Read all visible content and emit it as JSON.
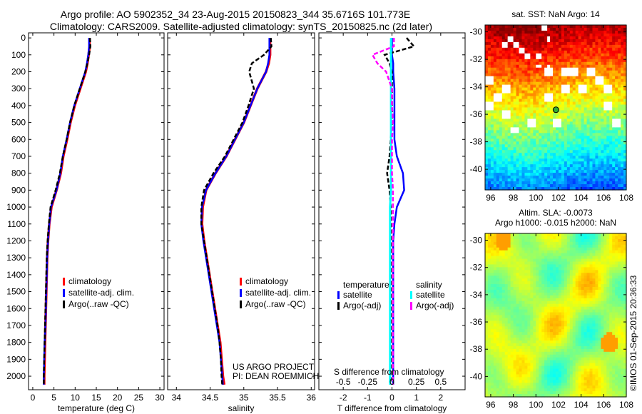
{
  "title_line1": "Argo profile: AO 5902352_34 23-Aug-2015 20150823_344 35.6716S 101.773E",
  "title_line2": "Climatology: CARS2009. Satellite-adjusted climatology: synTS_20150825.nc (2d later)",
  "credit": "©IMOS 01-Sep-2015 20:36:33",
  "project_line1": "US ARGO PROJECT",
  "project_line2": "PI: DEAN ROEMMICH",
  "colors": {
    "climatology": "#ff0000",
    "satellite": "#0000ff",
    "argo": "#000000",
    "sal_satellite": "#00ffff",
    "sal_argo": "#ff00ff"
  },
  "chart_data": [
    {
      "type": "line",
      "name": "temperature",
      "xlabel": "temperature (deg C)",
      "xlim": [
        -1,
        31
      ],
      "xticks": [
        "0",
        "5",
        "10",
        "15",
        "20",
        "25",
        "30"
      ],
      "ylim": [
        2080,
        -30
      ],
      "yticks": [
        "0",
        "100",
        "200",
        "300",
        "400",
        "500",
        "600",
        "700",
        "800",
        "900",
        "1000",
        "1100",
        "1200",
        "1300",
        "1400",
        "1500",
        "1600",
        "1700",
        "1800",
        "1900",
        "2000"
      ],
      "legend": [
        "climatology",
        "satellite-adj. clim.",
        "Argo(..raw -QC)"
      ],
      "depth": [
        0,
        50,
        100,
        150,
        200,
        300,
        400,
        500,
        600,
        700,
        800,
        900,
        1000,
        1100,
        1200,
        1300,
        1400,
        1500,
        1600,
        1700,
        1800,
        1900,
        2000,
        2050
      ],
      "series": [
        {
          "name": "climatology",
          "values": [
            13.4,
            13.4,
            13.2,
            12.9,
            12.5,
            11.2,
            9.9,
            8.9,
            8.1,
            7.2,
            6.6,
            5.6,
            4.4,
            3.9,
            3.6,
            3.4,
            3.3,
            3.2,
            3.1,
            3.0,
            2.9,
            2.8,
            2.7,
            2.7
          ]
        },
        {
          "name": "satellite-adj. clim.",
          "values": [
            13.3,
            13.3,
            13.1,
            12.8,
            12.4,
            11.1,
            9.8,
            8.8,
            8.0,
            7.1,
            6.5,
            5.6,
            4.3,
            3.9,
            3.6,
            3.4,
            3.3,
            3.2,
            3.1,
            3.0,
            2.8,
            2.7,
            2.6,
            2.6
          ]
        },
        {
          "name": "Argo(..raw -QC)",
          "values": [
            13.5,
            13.6,
            13.3,
            12.9,
            12.4,
            11.1,
            9.8,
            8.8,
            8.0,
            7.1,
            6.4,
            5.4,
            4.2,
            3.8,
            3.5,
            3.3,
            3.2,
            3.1,
            3.0,
            2.9,
            2.8,
            2.7,
            2.6,
            2.6
          ]
        }
      ]
    },
    {
      "type": "line",
      "name": "salinity",
      "xlabel": "salinity",
      "xlim": [
        33.87,
        36.05
      ],
      "xticks": [
        "34",
        "34.5",
        "35",
        "35.5",
        "36"
      ],
      "ylim": [
        2080,
        -30
      ],
      "legend": [
        "climatology",
        "satellite-adj. clim.",
        "Argo(..raw -QC)"
      ],
      "depth": [
        0,
        50,
        100,
        150,
        200,
        300,
        400,
        500,
        600,
        700,
        800,
        900,
        1000,
        1100,
        1200,
        1300,
        1400,
        1500,
        1600,
        1700,
        1800,
        1900,
        2000,
        2050
      ],
      "series": [
        {
          "name": "climatology",
          "values": [
            35.39,
            35.39,
            35.39,
            35.37,
            35.33,
            35.2,
            35.1,
            35.0,
            34.87,
            34.74,
            34.58,
            34.44,
            34.39,
            34.38,
            34.41,
            34.45,
            34.49,
            34.53,
            34.57,
            34.61,
            34.65,
            34.67,
            34.69,
            34.71
          ]
        },
        {
          "name": "satellite-adj. clim.",
          "values": [
            35.38,
            35.38,
            35.38,
            35.36,
            35.33,
            35.2,
            35.1,
            35.0,
            34.87,
            34.74,
            34.58,
            34.44,
            34.38,
            34.37,
            34.4,
            34.44,
            34.48,
            34.52,
            34.56,
            34.6,
            34.64,
            34.66,
            34.68,
            34.69
          ]
        },
        {
          "name": "Argo(..raw -QC)",
          "values": [
            35.4,
            35.41,
            35.3,
            35.12,
            35.08,
            35.15,
            35.07,
            34.98,
            34.85,
            34.72,
            34.55,
            34.41,
            34.37,
            34.37,
            34.41,
            34.45,
            34.49,
            34.53,
            34.57,
            34.61,
            34.64,
            34.66,
            34.67,
            34.68
          ]
        }
      ]
    },
    {
      "type": "line",
      "name": "difference",
      "xlabel": "T difference from climatology",
      "xlabel2": "S difference from climatology",
      "xlim": [
        -3,
        3
      ],
      "xticks": [
        "-2",
        "-1",
        "0",
        "1",
        "2"
      ],
      "s_xticks": [
        "-0.5",
        "-0.25",
        "0",
        "0.25",
        "0.5"
      ],
      "ylim": [
        2080,
        -30
      ],
      "legend_t_title": "temperature",
      "legend_s_title": "salinity",
      "legend": [
        "satellite",
        "Argo(-adj)",
        "satellite",
        "Argo(-adj)"
      ],
      "depth": [
        0,
        50,
        100,
        150,
        200,
        300,
        400,
        500,
        600,
        700,
        800,
        900,
        1000,
        1100,
        1200,
        1300,
        1400,
        1500,
        1600,
        1700,
        1800,
        1900,
        2000,
        2050
      ],
      "series": [
        {
          "name": "T satellite",
          "values": [
            0,
            0,
            0,
            0.05,
            0.05,
            0.1,
            0.1,
            0.1,
            0.1,
            0.2,
            0.45,
            0.5,
            0.2,
            0.1,
            0.05,
            0.05,
            0.05,
            0.05,
            0.05,
            0.05,
            0.05,
            0.05,
            0.05,
            0.05
          ]
        },
        {
          "name": "T Argo(-adj)",
          "values": [
            0.6,
            0.9,
            -0.3,
            -0.1,
            0,
            0,
            0,
            0,
            -0.05,
            -0.1,
            -0.2,
            -0.1,
            -0.05,
            -0.05,
            -0.05,
            -0.05,
            -0.05,
            -0.05,
            -0.05,
            -0.05,
            -0.05,
            -0.05,
            -0.05,
            -0.05
          ]
        },
        {
          "name": "S satellite",
          "values": [
            -0.01,
            -0.01,
            -0.01,
            -0.01,
            -0.01,
            -0.01,
            -0.01,
            -0.01,
            -0.01,
            -0.01,
            -0.01,
            -0.01,
            -0.02,
            -0.02,
            -0.02,
            -0.02,
            -0.02,
            -0.02,
            -0.02,
            -0.02,
            -0.02,
            -0.02,
            -0.02,
            -0.02
          ]
        },
        {
          "name": "S Argo(-adj)",
          "values": [
            0.02,
            0.02,
            -0.2,
            -0.15,
            -0.06,
            0,
            0,
            0.01,
            0,
            0,
            0,
            0.01,
            0.01,
            0.01,
            0.01,
            0.01,
            0.01,
            0.01,
            0.01,
            0.01,
            0.01,
            0.01,
            0.01,
            0.01
          ]
        }
      ]
    },
    {
      "type": "heatmap",
      "name": "sst-map",
      "title": "sat. SST: NaN Argo: 14",
      "xticks": [
        "96",
        "98",
        "100",
        "102",
        "104",
        "106",
        "108"
      ],
      "yticks": [
        "-30",
        "-32",
        "-34",
        "-36",
        "-38",
        "-40"
      ],
      "xlim": [
        95.5,
        108
      ],
      "ylim": [
        -41.5,
        -29.5
      ],
      "argo_lon": 101.773,
      "argo_lat": -35.6716
    },
    {
      "type": "heatmap",
      "name": "sla-map",
      "title_line1": "Altim. SLA: -0.0073",
      "title_line2": "Argo h1000: -0.015 h2000: NaN",
      "xticks": [
        "96",
        "98",
        "100",
        "102",
        "104",
        "106",
        "108"
      ],
      "yticks": [
        "-30",
        "-32",
        "-34",
        "-36",
        "-38",
        "-40"
      ],
      "xlim": [
        95.5,
        108
      ],
      "ylim": [
        -41.5,
        -29.5
      ]
    }
  ]
}
